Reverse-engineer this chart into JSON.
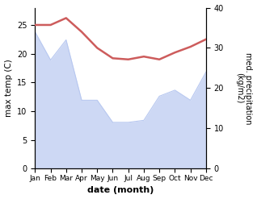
{
  "months": [
    "Jan",
    "Feb",
    "Mar",
    "Apr",
    "May",
    "Jun",
    "Jul",
    "Aug",
    "Sep",
    "Oct",
    "Nov",
    "Dec"
  ],
  "month_indices": [
    1,
    2,
    3,
    4,
    5,
    6,
    7,
    8,
    9,
    10,
    11,
    12
  ],
  "temperature": [
    25.0,
    25.0,
    26.2,
    23.8,
    21.0,
    19.2,
    19.0,
    19.5,
    19.0,
    20.2,
    21.2,
    22.5
  ],
  "precipitation": [
    34.0,
    27.0,
    32.0,
    17.0,
    17.0,
    11.5,
    11.5,
    12.0,
    18.0,
    19.5,
    17.0,
    24.0
  ],
  "temp_color": "#cd5c5c",
  "precip_color": "#b8c8f0",
  "precip_alpha": 0.7,
  "temp_ylim": [
    0,
    28
  ],
  "precip_ylim": [
    0,
    40
  ],
  "xlabel": "date (month)",
  "ylabel_left": "max temp (C)",
  "ylabel_right": "med. precipitation\n(kg/m2)",
  "temp_yticks": [
    0,
    5,
    10,
    15,
    20,
    25
  ],
  "precip_yticks": [
    0,
    10,
    20,
    30,
    40
  ],
  "background_color": "#ffffff"
}
